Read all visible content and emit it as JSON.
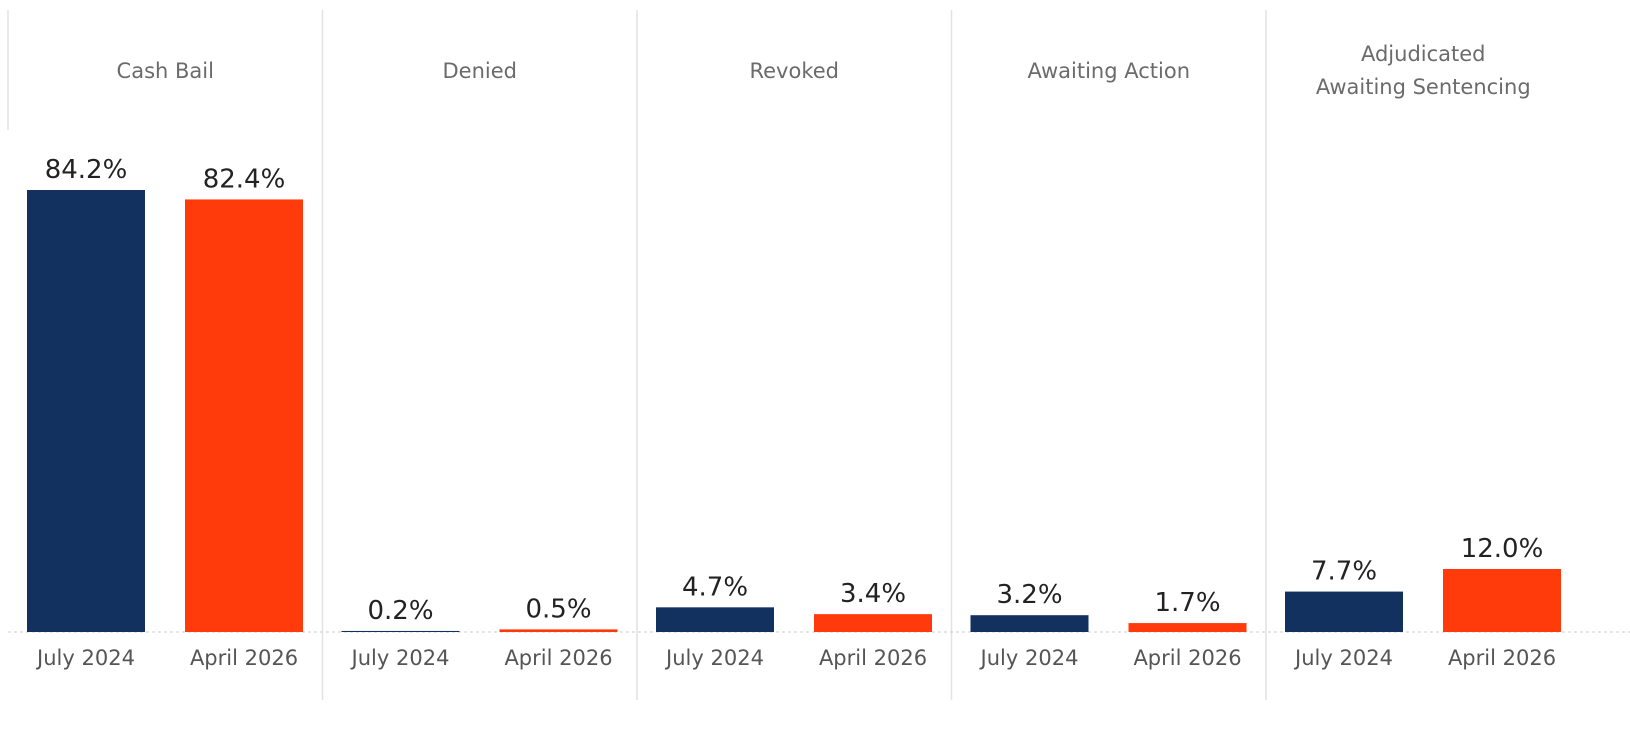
{
  "chart_data": {
    "type": "bar",
    "categories": [
      "Cash Bail",
      "Denied",
      "Revoked",
      "Awaiting Action",
      "Adjudicated Awaiting Sentencing"
    ],
    "series": [
      {
        "name": "July 2024",
        "color": "#13315f",
        "values": [
          84.2,
          0.2,
          4.7,
          3.2,
          7.7
        ],
        "value_labels": [
          "84.2%",
          "0.2%",
          "4.7%",
          "3.2%",
          "7.7%"
        ]
      },
      {
        "name": "April 2026",
        "color": "#ff3a0b",
        "values": [
          82.4,
          0.5,
          3.4,
          1.7,
          12.0
        ],
        "value_labels": [
          "82.4%",
          "0.5%",
          "3.4%",
          "1.7%",
          "12.0%"
        ]
      }
    ]
  }
}
